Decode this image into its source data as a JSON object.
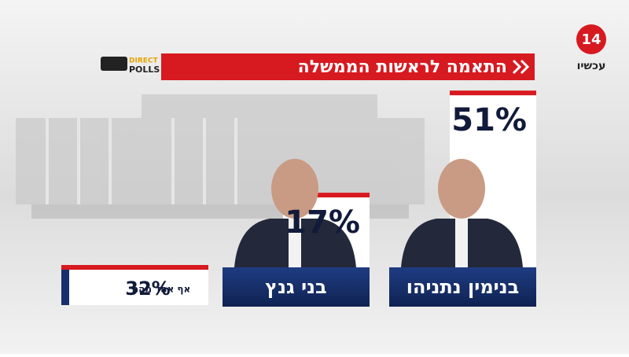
{
  "chart_data": {
    "type": "bar",
    "title": "התאמה לראשות הממשלה",
    "channel": "עכשיו",
    "channel_number": "14",
    "poll_brand": [
      "DIRECT",
      "POLLS"
    ],
    "categories": [
      "בנימין נתניהו",
      "בני גנץ",
      "אף אחד מהם"
    ],
    "values": [
      51,
      17,
      32
    ],
    "value_labels": [
      "51%",
      "17%",
      "32%"
    ],
    "colors": {
      "accent": "#d71920",
      "name_box": "#17306b"
    }
  }
}
